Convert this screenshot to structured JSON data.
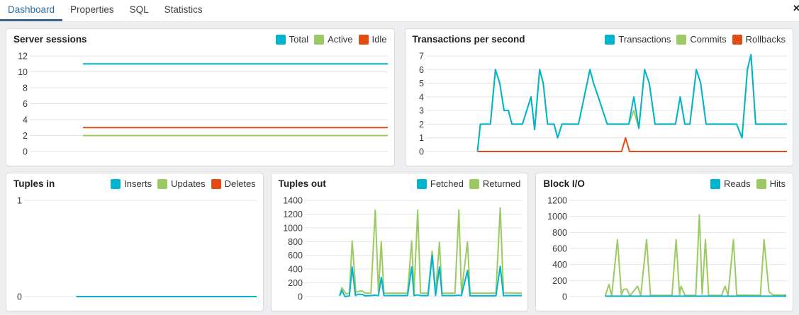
{
  "tabs": [
    {
      "label": "Dashboard",
      "active": true
    },
    {
      "label": "Properties",
      "active": false
    },
    {
      "label": "SQL",
      "active": false
    },
    {
      "label": "Statistics",
      "active": false
    }
  ],
  "icons": {
    "close": "✕"
  },
  "colors": {
    "cyan": "#00b4d0",
    "green": "#9cca62",
    "red": "#e54a10",
    "grid": "#e2e3e9",
    "tick_text": "#3a3a3a",
    "tab_active": "#2c6da4",
    "tab_underline": "#39688c"
  },
  "chart_data": [
    {
      "type": "line",
      "title": "Server sessions",
      "label_width": 30,
      "ymax": 12,
      "yticks": [
        0,
        2,
        4,
        6,
        8,
        10,
        12
      ],
      "legend_position": "top-right",
      "grid": true,
      "series": [
        {
          "name": "Total",
          "color": "#00b4d0",
          "points": [
            [
              0.145,
              11
            ],
            [
              1,
              11
            ]
          ]
        },
        {
          "name": "Active",
          "color": "#9cca62",
          "points": [
            [
              0.145,
              2
            ],
            [
              1,
              2
            ]
          ]
        },
        {
          "name": "Idle",
          "color": "#e54a10",
          "points": [
            [
              0.145,
              3
            ],
            [
              1,
              3
            ]
          ]
        }
      ]
    },
    {
      "type": "line",
      "title": "Transactions per second",
      "label_width": 26,
      "ymax": 7,
      "yticks": [
        0,
        1,
        2,
        3,
        4,
        5,
        6,
        7
      ],
      "legend_position": "top-right",
      "grid": true,
      "series": [
        {
          "name": "Transactions",
          "color": "#00b4d0",
          "points": [
            [
              0.139,
              0
            ],
            [
              0.147,
              2
            ],
            [
              0.175,
              2
            ],
            [
              0.189,
              6
            ],
            [
              0.201,
              5
            ],
            [
              0.213,
              3
            ],
            [
              0.225,
              3
            ],
            [
              0.235,
              2
            ],
            [
              0.264,
              2
            ],
            [
              0.288,
              4
            ],
            [
              0.298,
              1.6
            ],
            [
              0.312,
              6
            ],
            [
              0.322,
              5
            ],
            [
              0.334,
              2
            ],
            [
              0.352,
              2
            ],
            [
              0.362,
              1
            ],
            [
              0.374,
              2
            ],
            [
              0.42,
              2
            ],
            [
              0.452,
              6
            ],
            [
              0.462,
              5
            ],
            [
              0.475,
              4
            ],
            [
              0.5,
              2
            ],
            [
              0.56,
              2
            ],
            [
              0.574,
              4
            ],
            [
              0.588,
              1.7
            ],
            [
              0.604,
              6
            ],
            [
              0.617,
              5
            ],
            [
              0.633,
              2
            ],
            [
              0.69,
              2
            ],
            [
              0.703,
              4
            ],
            [
              0.716,
              2
            ],
            [
              0.73,
              2
            ],
            [
              0.748,
              6
            ],
            [
              0.76,
              5
            ],
            [
              0.775,
              2
            ],
            [
              0.86,
              2
            ],
            [
              0.875,
              1
            ],
            [
              0.89,
              6
            ],
            [
              0.9,
              7.1
            ],
            [
              0.913,
              2
            ],
            [
              1,
              2
            ]
          ]
        },
        {
          "name": "Commits",
          "color": "#9cca62",
          "points": [
            [
              0.139,
              0
            ],
            [
              0.147,
              2
            ],
            [
              0.175,
              2
            ],
            [
              0.189,
              6
            ],
            [
              0.201,
              5
            ],
            [
              0.213,
              3
            ],
            [
              0.225,
              3
            ],
            [
              0.235,
              2
            ],
            [
              0.264,
              2
            ],
            [
              0.288,
              4
            ],
            [
              0.298,
              1.6
            ],
            [
              0.312,
              6
            ],
            [
              0.322,
              5
            ],
            [
              0.334,
              2
            ],
            [
              0.352,
              2
            ],
            [
              0.362,
              1
            ],
            [
              0.374,
              2
            ],
            [
              0.42,
              2
            ],
            [
              0.452,
              6
            ],
            [
              0.462,
              5
            ],
            [
              0.475,
              4
            ],
            [
              0.5,
              2
            ],
            [
              0.56,
              2
            ],
            [
              0.574,
              3
            ],
            [
              0.588,
              1.7
            ],
            [
              0.604,
              6
            ],
            [
              0.617,
              5
            ],
            [
              0.633,
              2
            ],
            [
              0.69,
              2
            ],
            [
              0.703,
              4
            ],
            [
              0.716,
              2
            ],
            [
              0.73,
              2
            ],
            [
              0.748,
              6
            ],
            [
              0.76,
              5
            ],
            [
              0.775,
              2
            ],
            [
              0.86,
              2
            ],
            [
              0.875,
              1
            ],
            [
              0.89,
              6
            ],
            [
              0.9,
              7.1
            ],
            [
              0.913,
              2
            ],
            [
              1,
              2
            ]
          ]
        },
        {
          "name": "Rollbacks",
          "color": "#e54a10",
          "points": [
            [
              0.139,
              0
            ],
            [
              0.54,
              0
            ],
            [
              0.551,
              1
            ],
            [
              0.562,
              0
            ],
            [
              1,
              0
            ]
          ]
        }
      ]
    },
    {
      "type": "line",
      "title": "Tuples in",
      "label_width": 22,
      "ymax": 1,
      "yticks": [
        0,
        1
      ],
      "legend_position": "top-right",
      "grid": true,
      "series": [
        {
          "name": "Inserts",
          "color": "#00b4d0",
          "points": [
            [
              0.22,
              0
            ],
            [
              1,
              0
            ]
          ]
        },
        {
          "name": "Updates",
          "color": "#9cca62",
          "points": [
            [
              0.22,
              0
            ],
            [
              1,
              0
            ]
          ]
        },
        {
          "name": "Deletes",
          "color": "#e54a10",
          "points": [
            [
              0.22,
              0
            ],
            [
              1,
              0
            ]
          ]
        }
      ]
    },
    {
      "type": "line",
      "title": "Tuples out",
      "label_width": 44,
      "ymax": 1400,
      "yticks": [
        0,
        200,
        400,
        600,
        800,
        1000,
        1200,
        1400
      ],
      "legend_position": "top-right",
      "grid": true,
      "series": [
        {
          "name": "Fetched",
          "color": "#00b4d0",
          "points": [
            [
              0.155,
              10
            ],
            [
              0.165,
              90
            ],
            [
              0.18,
              0
            ],
            [
              0.2,
              10
            ],
            [
              0.213,
              430
            ],
            [
              0.228,
              15
            ],
            [
              0.24,
              35
            ],
            [
              0.26,
              30
            ],
            [
              0.275,
              10
            ],
            [
              0.3,
              15
            ],
            [
              0.32,
              20
            ],
            [
              0.335,
              15
            ],
            [
              0.348,
              280
            ],
            [
              0.36,
              15
            ],
            [
              0.47,
              15
            ],
            [
              0.489,
              430
            ],
            [
              0.5,
              15
            ],
            [
              0.517,
              25
            ],
            [
              0.53,
              15
            ],
            [
              0.565,
              15
            ],
            [
              0.584,
              600
            ],
            [
              0.6,
              15
            ],
            [
              0.618,
              430
            ],
            [
              0.63,
              15
            ],
            [
              0.69,
              15
            ],
            [
              0.708,
              20
            ],
            [
              0.72,
              15
            ],
            [
              0.748,
              380
            ],
            [
              0.76,
              12
            ],
            [
              0.88,
              12
            ],
            [
              0.9,
              440
            ],
            [
              0.915,
              15
            ],
            [
              1,
              15
            ]
          ]
        },
        {
          "name": "Returned",
          "color": "#9cca62",
          "points": [
            [
              0.155,
              20
            ],
            [
              0.165,
              130
            ],
            [
              0.185,
              40
            ],
            [
              0.2,
              50
            ],
            [
              0.213,
              810
            ],
            [
              0.23,
              60
            ],
            [
              0.245,
              80
            ],
            [
              0.26,
              80
            ],
            [
              0.275,
              50
            ],
            [
              0.3,
              50
            ],
            [
              0.32,
              1260
            ],
            [
              0.335,
              60
            ],
            [
              0.348,
              800
            ],
            [
              0.36,
              50
            ],
            [
              0.47,
              50
            ],
            [
              0.489,
              810
            ],
            [
              0.5,
              60
            ],
            [
              0.517,
              1260
            ],
            [
              0.53,
              50
            ],
            [
              0.565,
              50
            ],
            [
              0.584,
              660
            ],
            [
              0.6,
              55
            ],
            [
              0.618,
              790
            ],
            [
              0.63,
              50
            ],
            [
              0.69,
              50
            ],
            [
              0.708,
              1260
            ],
            [
              0.72,
              55
            ],
            [
              0.748,
              800
            ],
            [
              0.76,
              50
            ],
            [
              0.88,
              50
            ],
            [
              0.9,
              1290
            ],
            [
              0.915,
              55
            ],
            [
              1,
              50
            ]
          ]
        }
      ]
    },
    {
      "type": "line",
      "title": "Block I/O",
      "label_width": 44,
      "ymax": 1200,
      "yticks": [
        0,
        200,
        400,
        600,
        800,
        1000,
        1200
      ],
      "legend_position": "top-right",
      "grid": true,
      "series": [
        {
          "name": "Reads",
          "color": "#00b4d0",
          "points": [
            [
              0.16,
              5
            ],
            [
              1,
              5
            ]
          ]
        },
        {
          "name": "Hits",
          "color": "#9cca62",
          "points": [
            [
              0.16,
              5
            ],
            [
              0.177,
              150
            ],
            [
              0.19,
              10
            ],
            [
              0.217,
              710
            ],
            [
              0.235,
              20
            ],
            [
              0.245,
              90
            ],
            [
              0.26,
              95
            ],
            [
              0.275,
              10
            ],
            [
              0.31,
              130
            ],
            [
              0.325,
              15
            ],
            [
              0.352,
              710
            ],
            [
              0.37,
              15
            ],
            [
              0.47,
              15
            ],
            [
              0.489,
              710
            ],
            [
              0.505,
              20
            ],
            [
              0.512,
              130
            ],
            [
              0.53,
              15
            ],
            [
              0.58,
              15
            ],
            [
              0.597,
              1020
            ],
            [
              0.61,
              30
            ],
            [
              0.625,
              710
            ],
            [
              0.64,
              15
            ],
            [
              0.7,
              15
            ],
            [
              0.716,
              130
            ],
            [
              0.73,
              15
            ],
            [
              0.755,
              710
            ],
            [
              0.77,
              20
            ],
            [
              0.88,
              15
            ],
            [
              0.897,
              710
            ],
            [
              0.92,
              60
            ],
            [
              0.94,
              20
            ],
            [
              1,
              20
            ]
          ]
        }
      ]
    }
  ]
}
